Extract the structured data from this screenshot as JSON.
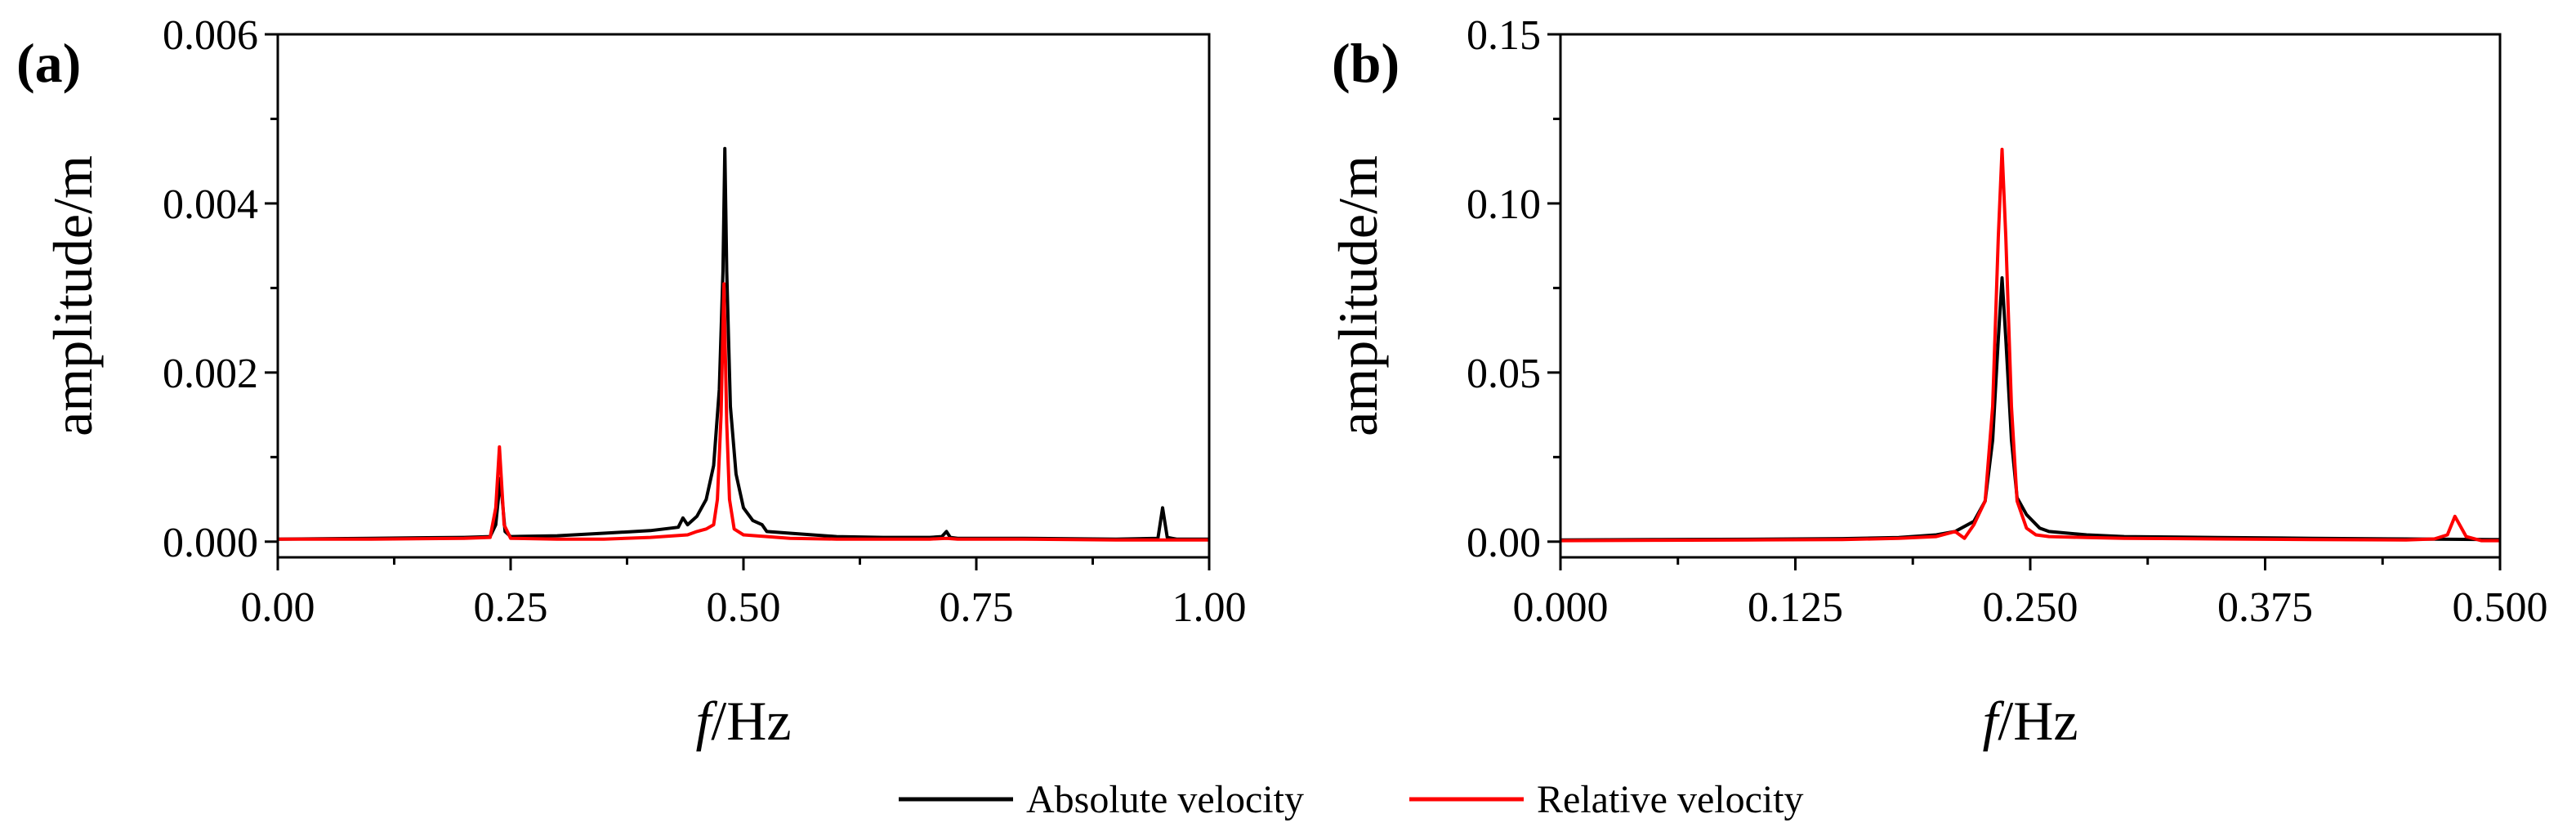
{
  "colors": {
    "absolute": "#000000",
    "relative": "#ff0000"
  },
  "legend": {
    "items": [
      {
        "label": "Absolute velocity",
        "color": "#000000"
      },
      {
        "label": "Relative velocity",
        "color": "#ff0000"
      }
    ]
  },
  "chart_data": [
    {
      "type": "line",
      "panel_label": "(a)",
      "xlabel_italic": "f",
      "xlabel_rest": "/Hz",
      "ylabel": "amplitude/m",
      "xlim": [
        0,
        1
      ],
      "ylim": [
        0,
        0.006
      ],
      "xticks": [
        0,
        0.25,
        0.5,
        0.75,
        1.0
      ],
      "xtick_labels": [
        "0.00",
        "0.25",
        "0.50",
        "0.75",
        "1.00"
      ],
      "yticks": [
        0,
        0.002,
        0.004,
        0.006
      ],
      "ytick_labels": [
        "0.000",
        "0.002",
        "0.004",
        "0.006"
      ],
      "series": [
        {
          "name": "Absolute velocity",
          "color": "#000000",
          "x": [
            0,
            0.1,
            0.2,
            0.228,
            0.234,
            0.239,
            0.244,
            0.25,
            0.3,
            0.35,
            0.4,
            0.43,
            0.435,
            0.44,
            0.45,
            0.46,
            0.468,
            0.474,
            0.478,
            0.48,
            0.482,
            0.486,
            0.492,
            0.5,
            0.51,
            0.52,
            0.525,
            0.55,
            0.6,
            0.65,
            0.7,
            0.713,
            0.718,
            0.722,
            0.73,
            0.8,
            0.9,
            0.945,
            0.95,
            0.955,
            0.96,
            0.965,
            0.98,
            1.0
          ],
          "y": [
            3e-05,
            4e-05,
            5e-05,
            6e-05,
            0.0002,
            0.00075,
            0.00012,
            6e-05,
            7e-05,
            0.0001,
            0.00013,
            0.00017,
            0.00028,
            0.0002,
            0.0003,
            0.0005,
            0.0009,
            0.0018,
            0.0032,
            0.00465,
            0.0032,
            0.0016,
            0.0008,
            0.0004,
            0.00025,
            0.0002,
            0.00012,
            0.0001,
            6e-05,
            5e-05,
            5e-05,
            6e-05,
            0.00012,
            5e-05,
            4e-05,
            4e-05,
            3e-05,
            4e-05,
            0.0004,
            5e-05,
            4e-05,
            3e-05,
            3e-05,
            3e-05
          ]
        },
        {
          "name": "Relative velocity",
          "color": "#ff0000",
          "x": [
            0,
            0.1,
            0.2,
            0.228,
            0.234,
            0.238,
            0.243,
            0.25,
            0.3,
            0.35,
            0.4,
            0.44,
            0.45,
            0.46,
            0.468,
            0.472,
            0.476,
            0.479,
            0.482,
            0.485,
            0.49,
            0.5,
            0.55,
            0.6,
            0.7,
            0.718,
            0.73,
            0.8,
            0.9,
            0.95,
            1.0
          ],
          "y": [
            3e-05,
            3e-05,
            4e-05,
            5e-05,
            0.0004,
            0.00112,
            0.0002,
            4e-05,
            3e-05,
            3e-05,
            5e-05,
            8e-05,
            0.00012,
            0.00015,
            0.0002,
            0.0005,
            0.0015,
            0.00305,
            0.0014,
            0.0005,
            0.00015,
            8e-05,
            4e-05,
            3e-05,
            3e-05,
            4e-05,
            3e-05,
            3e-05,
            2e-05,
            2e-05,
            2e-05
          ]
        }
      ]
    },
    {
      "type": "line",
      "panel_label": "(b)",
      "xlabel_italic": "f",
      "xlabel_rest": "/Hz",
      "ylabel": "amplitude/m",
      "xlim": [
        0,
        0.5
      ],
      "ylim": [
        0,
        0.15
      ],
      "xticks": [
        0,
        0.125,
        0.25,
        0.375,
        0.5
      ],
      "xtick_labels": [
        "0.000",
        "0.125",
        "0.250",
        "0.375",
        "0.500"
      ],
      "yticks": [
        0,
        0.05,
        0.1,
        0.15
      ],
      "ytick_labels": [
        "0.00",
        "0.05",
        "0.10",
        "0.15"
      ],
      "series": [
        {
          "name": "Absolute velocity",
          "color": "#000000",
          "x": [
            0,
            0.05,
            0.1,
            0.15,
            0.18,
            0.2,
            0.21,
            0.22,
            0.226,
            0.23,
            0.233,
            0.235,
            0.237,
            0.24,
            0.243,
            0.248,
            0.255,
            0.26,
            0.28,
            0.3,
            0.35,
            0.4,
            0.45,
            0.5
          ],
          "y": [
            0.0005,
            0.0006,
            0.0007,
            0.0009,
            0.0012,
            0.002,
            0.003,
            0.006,
            0.012,
            0.03,
            0.06,
            0.078,
            0.06,
            0.03,
            0.013,
            0.008,
            0.004,
            0.003,
            0.002,
            0.0015,
            0.0012,
            0.001,
            0.0008,
            0.0006
          ]
        },
        {
          "name": "Relative velocity",
          "color": "#ff0000",
          "x": [
            0,
            0.05,
            0.1,
            0.15,
            0.18,
            0.2,
            0.21,
            0.215,
            0.22,
            0.226,
            0.23,
            0.233,
            0.235,
            0.237,
            0.24,
            0.243,
            0.248,
            0.253,
            0.26,
            0.28,
            0.3,
            0.35,
            0.4,
            0.45,
            0.465,
            0.472,
            0.476,
            0.482,
            0.49,
            0.5
          ],
          "y": [
            0.0003,
            0.0004,
            0.0005,
            0.0006,
            0.001,
            0.0015,
            0.003,
            0.001,
            0.005,
            0.012,
            0.04,
            0.09,
            0.116,
            0.09,
            0.04,
            0.012,
            0.004,
            0.002,
            0.0015,
            0.0012,
            0.001,
            0.0008,
            0.0006,
            0.0005,
            0.0008,
            0.002,
            0.0075,
            0.0015,
            0.0003,
            0.0003
          ]
        }
      ]
    }
  ]
}
